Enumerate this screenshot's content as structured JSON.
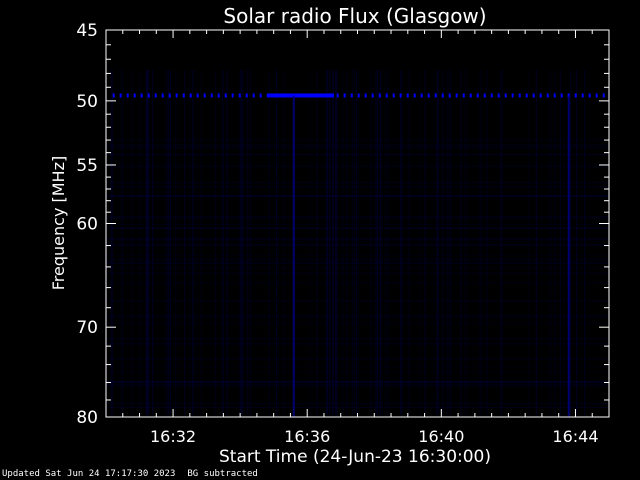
{
  "chart_data": {
    "type": "heatmap",
    "title": "Solar radio Flux (Glasgow)",
    "xlabel": "Start Time (24-Jun-23 16:30:00)",
    "ylabel": "Frequency [MHz]",
    "x_unit": "minutes after 16:30:00",
    "xlim": [
      0,
      15
    ],
    "ylim": [
      45,
      80
    ],
    "x_ticks": [
      {
        "value": 2,
        "label": "16:32"
      },
      {
        "value": 6,
        "label": "16:36"
      },
      {
        "value": 10,
        "label": "16:40"
      },
      {
        "value": 14,
        "label": "16:44"
      }
    ],
    "y_ticks": [
      {
        "value": 45,
        "label": "45"
      },
      {
        "value": 50,
        "label": "50"
      },
      {
        "value": 55,
        "label": "55"
      },
      {
        "value": 60,
        "label": "60"
      },
      {
        "value": 70,
        "label": "70"
      },
      {
        "value": 80,
        "label": "80"
      }
    ],
    "y_scale": "log",
    "colormap": [
      "#000000",
      "#00008b",
      "#0000ff"
    ],
    "features": [
      {
        "kind": "narrowband_interference",
        "frequency_mhz": 49.6,
        "t_start": 0.2,
        "t_end": 15.0
      },
      {
        "kind": "intensified_band",
        "frequency_mhz": 49.6,
        "t_start": 4.8,
        "t_end": 6.8
      },
      {
        "kind": "vertical_streak",
        "time": 5.6,
        "f_start": 49.6,
        "f_end": 80
      },
      {
        "kind": "vertical_streak",
        "time": 13.8,
        "f_start": 49.6,
        "f_end": 80
      }
    ],
    "grid": false
  },
  "footer": {
    "updated": "Updated Sat Jun 24 17:17:30 2023",
    "note": "BG subtracted"
  },
  "colors": {
    "background": "#000000",
    "axes": "#ffffff",
    "signal": "#0000ff"
  }
}
